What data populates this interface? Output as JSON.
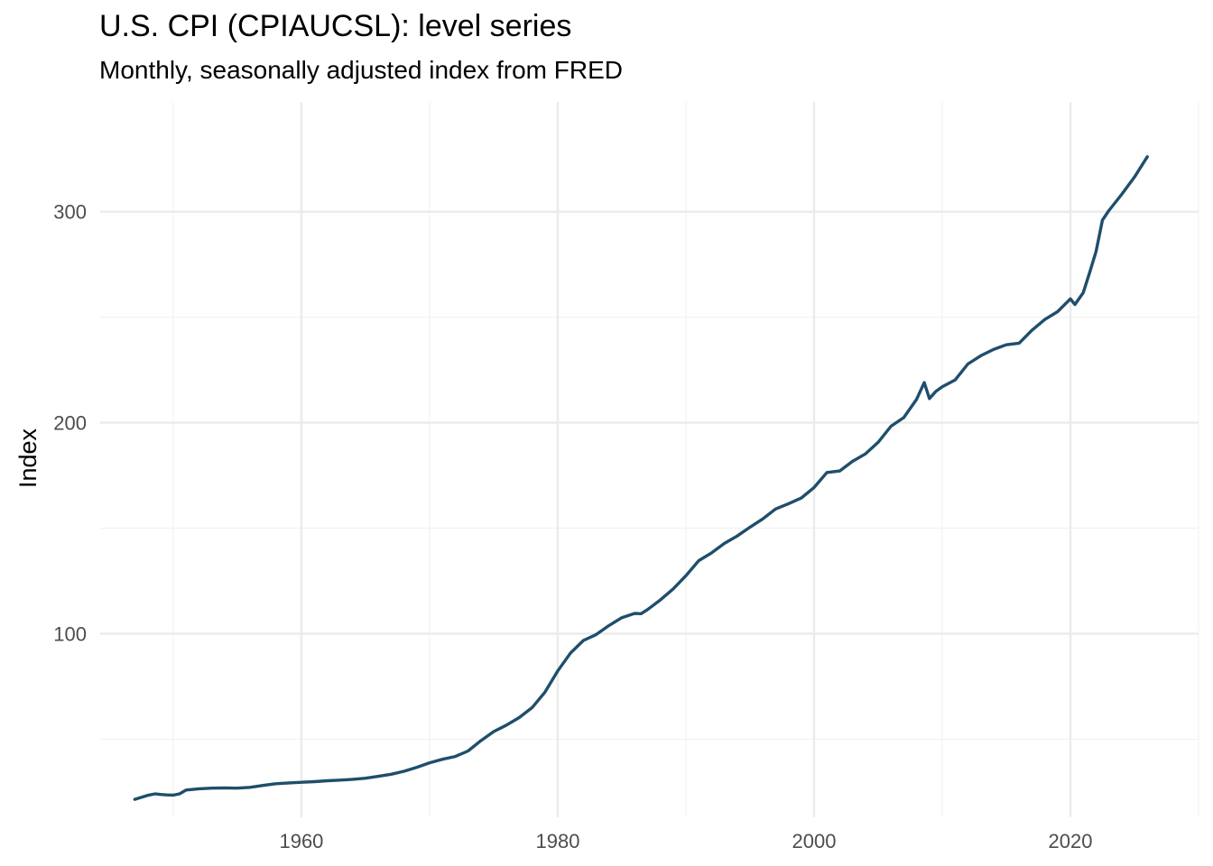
{
  "chart_data": {
    "type": "line",
    "title": "U.S. CPI (CPIAUCSL): level series",
    "subtitle": "Monthly, seasonally adjusted index from FRED",
    "xlabel": "",
    "ylabel": "Index",
    "xlim": [
      1943.3,
      1930.0
    ],
    "ylim": [
      13,
      352
    ],
    "x_ticks": [
      1960,
      1980,
      2000,
      2020
    ],
    "x_tick_labels": [
      "1960",
      "1980",
      "2000",
      "2020"
    ],
    "y_ticks": [
      100,
      200,
      300
    ],
    "y_tick_labels": [
      "100",
      "200",
      "300"
    ],
    "grid": true,
    "legend": "none",
    "line_color": "#1f4e6b",
    "series": [
      {
        "x": [
          1947.0,
          1948.0,
          1948.6,
          1949.0,
          1949.5,
          1950.0,
          1950.5,
          1951.0,
          1952.0,
          1953.0,
          1954.0,
          1955.0,
          1956.0,
          1957.0,
          1958.0,
          1959.0,
          1960.0,
          1961.0,
          1962.0,
          1963.0,
          1964.0,
          1965.0,
          1966.0,
          1967.0,
          1968.0,
          1969.0,
          1970.0,
          1971.0,
          1972.0,
          1973.0,
          1974.0,
          1975.0,
          1976.0,
          1977.0,
          1978.0,
          1979.0,
          1980.0,
          1981.0,
          1982.0,
          1983.0,
          1984.0,
          1985.0,
          1986.0,
          1986.5,
          1987.0,
          1988.0,
          1989.0,
          1990.0,
          1991.0,
          1992.0,
          1993.0,
          1994.0,
          1995.0,
          1996.0,
          1997.0,
          1998.0,
          1999.0,
          2000.0,
          2001.0,
          2002.0,
          2003.0,
          2004.0,
          2005.0,
          2006.0,
          2007.0,
          2008.0,
          2008.6,
          2009.0,
          2009.5,
          2010.0,
          2011.0,
          2012.0,
          2013.0,
          2014.0,
          2015.0,
          2016.0,
          2017.0,
          2018.0,
          2019.0,
          2020.0,
          2020.35,
          2021.0,
          2021.5,
          2022.0,
          2022.5,
          2023.0,
          2024.0,
          2025.0,
          2026.0
        ],
        "y": [
          21.5,
          23.4,
          24.1,
          23.8,
          23.6,
          23.5,
          24.1,
          25.9,
          26.5,
          26.8,
          26.9,
          26.8,
          27.2,
          28.1,
          28.9,
          29.3,
          29.6,
          29.9,
          30.3,
          30.6,
          31.0,
          31.5,
          32.4,
          33.4,
          34.8,
          36.7,
          38.8,
          40.5,
          41.8,
          44.4,
          49.3,
          53.6,
          56.7,
          60.3,
          65.0,
          72.3,
          82.4,
          90.9,
          96.8,
          99.6,
          103.9,
          107.6,
          109.6,
          109.5,
          111.4,
          116.0,
          121.2,
          127.5,
          134.6,
          138.3,
          142.8,
          146.3,
          150.5,
          154.4,
          159.1,
          161.6,
          164.3,
          169.3,
          176.4,
          177.1,
          181.7,
          185.2,
          190.7,
          198.3,
          202.4,
          211.1,
          219.0,
          211.4,
          214.8,
          217.0,
          220.2,
          227.8,
          231.7,
          234.7,
          236.9,
          237.7,
          243.8,
          248.9,
          252.6,
          258.7,
          256.0,
          261.6,
          271.1,
          281.1,
          296.0,
          300.5,
          308.2,
          316.4,
          326.0
        ]
      }
    ]
  }
}
